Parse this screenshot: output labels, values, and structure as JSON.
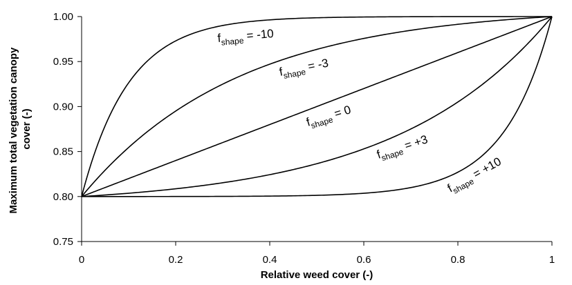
{
  "chart_data": {
    "type": "line",
    "xlabel": "Relative weed cover (-)",
    "ylabel_line1": "Maximum total vegetation canopy",
    "ylabel_line2": "cover (-)",
    "xlim": [
      0,
      1
    ],
    "ylim": [
      0.75,
      1.0
    ],
    "x_ticks": [
      0,
      0.2,
      0.4,
      0.6,
      0.8,
      1
    ],
    "x_tick_labels": [
      "0",
      "0.2",
      "0.4",
      "0.6",
      "0.8",
      "1"
    ],
    "y_ticks": [
      0.75,
      0.8,
      0.85,
      0.9,
      0.95,
      1.0
    ],
    "y_tick_labels": [
      "0.75",
      "0.80",
      "0.85",
      "0.90",
      "0.95",
      "1.00"
    ],
    "grid": false,
    "legend": "none",
    "line_color": "#000000",
    "series": [
      {
        "label": {
          "base": "f",
          "sub": "shape",
          "rest": " = -10"
        },
        "f_shape": -10,
        "x": [
          0,
          0.02,
          0.05,
          0.1,
          0.15,
          0.2,
          0.3,
          0.4,
          0.6,
          0.8,
          1
        ],
        "y": [
          0.8,
          0.836,
          0.879,
          0.926,
          0.955,
          0.973,
          0.99,
          0.996,
          0.9995,
          0.99995,
          1.0
        ]
      },
      {
        "label": {
          "base": "f",
          "sub": "shape",
          "rest": " = -3"
        },
        "f_shape": -3,
        "x": [
          0,
          0.1,
          0.2,
          0.3,
          0.4,
          0.5,
          0.6,
          0.7,
          0.8,
          0.9,
          1
        ],
        "y": [
          0.8,
          0.846,
          0.883,
          0.911,
          0.932,
          0.949,
          0.963,
          0.974,
          0.983,
          0.992,
          1.0
        ]
      },
      {
        "label": {
          "base": "f",
          "sub": "shape",
          "rest": " = 0"
        },
        "f_shape": 0,
        "x": [
          0,
          0.5,
          1
        ],
        "y": [
          0.8,
          0.9,
          1.0
        ]
      },
      {
        "label": {
          "base": "f",
          "sub": "shape",
          "rest": " = +3"
        },
        "f_shape": 3,
        "x": [
          0,
          0.1,
          0.2,
          0.3,
          0.4,
          0.5,
          0.6,
          0.7,
          0.8,
          0.9,
          1
        ],
        "y": [
          0.8,
          0.808,
          0.817,
          0.826,
          0.837,
          0.851,
          0.867,
          0.889,
          0.917,
          0.954,
          1.0
        ]
      },
      {
        "label": {
          "base": "f",
          "sub": "shape",
          "rest": " = +10"
        },
        "f_shape": 10,
        "x": [
          0,
          0.2,
          0.4,
          0.5,
          0.6,
          0.7,
          0.8,
          0.85,
          0.9,
          0.95,
          1
        ],
        "y": [
          0.8,
          0.80001,
          0.8001,
          0.8003,
          0.8009,
          0.8025,
          0.8271,
          0.845,
          0.874,
          0.921,
          1.0
        ]
      }
    ]
  }
}
